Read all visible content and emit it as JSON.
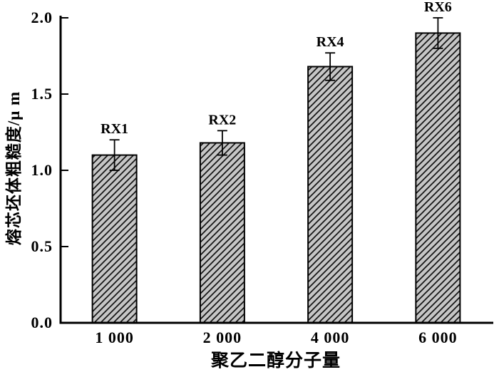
{
  "figure": {
    "background": "#ffffff"
  },
  "chart_data": {
    "type": "bar",
    "title": "",
    "xlabel": "聚乙二醇分子量",
    "ylabel": "熔芯坯体粗糙度/μ m",
    "categories": [
      "1 000",
      "2 000",
      "4 000",
      "6 000"
    ],
    "values": [
      1.1,
      1.18,
      1.68,
      1.9
    ],
    "errors": [
      0.1,
      0.08,
      0.09,
      0.1
    ],
    "bar_labels": [
      "RX1",
      "RX2",
      "RX4",
      "RX6"
    ],
    "ylim": [
      0.0,
      2.0
    ],
    "yticks": [
      "0.0",
      "0.5",
      "1.0",
      "1.5",
      "2.0"
    ],
    "grid": false,
    "legend": "none",
    "bar_fill": "#c5c5c5",
    "hatch_color": "#141414",
    "hatch_style": "diagonal-forward",
    "axis_color": "#000000"
  }
}
